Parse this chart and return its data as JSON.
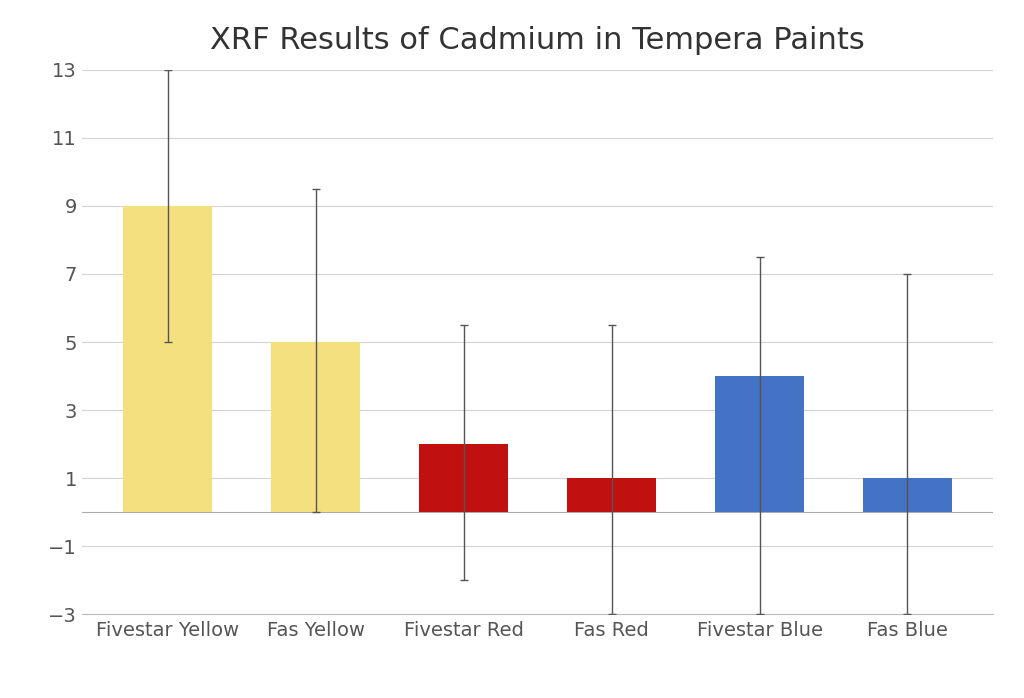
{
  "title": "XRF Results of Cadmium in Tempera Paints",
  "categories": [
    "Fivestar Yellow",
    "Fas Yellow",
    "Fivestar Red",
    "Fas Red",
    "Fivestar Blue",
    "Fas Blue"
  ],
  "values": [
    9,
    5,
    2,
    1,
    4,
    1
  ],
  "error_lower_abs": [
    5,
    0,
    -2,
    -3,
    -3,
    -3
  ],
  "error_upper_abs": [
    13,
    9.5,
    5.5,
    5.5,
    7.5,
    7
  ],
  "bar_colors": [
    "#F5E080",
    "#F5E080",
    "#C01010",
    "#C01010",
    "#4472C4",
    "#4472C4"
  ],
  "ylim": [
    -3,
    13
  ],
  "yticks": [
    -3,
    -1,
    1,
    3,
    5,
    7,
    9,
    11,
    13
  ],
  "background_color": "#FFFFFF",
  "grid_color": "#D3D3D3",
  "title_fontsize": 22,
  "tick_fontsize": 14,
  "bar_width": 0.6,
  "figsize": [
    10.24,
    6.98
  ],
  "dpi": 100
}
